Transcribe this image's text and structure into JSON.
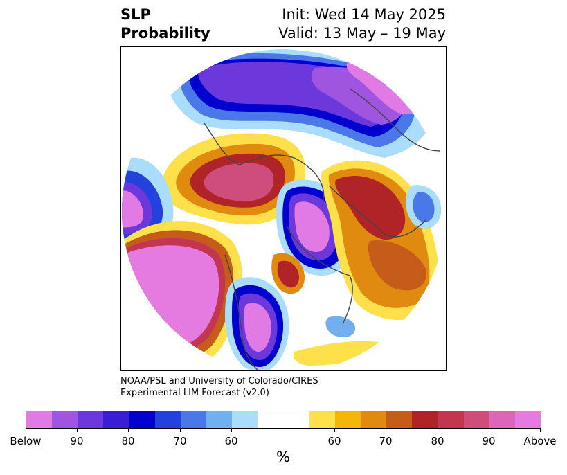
{
  "title": {
    "left": [
      "SLP",
      "Probability"
    ],
    "right": [
      "Init: Wed 14 May 2025",
      "Valid: 13 May – 19 May"
    ]
  },
  "credit": [
    "NOAA/PSL and University of Colorado/CIRES",
    "Experimental LIM Forecast (v2.0)"
  ],
  "colorbar": {
    "unit": "%",
    "below_colors": [
      "#e27ae6",
      "#9f55e0",
      "#6d38db",
      "#3a1ed3",
      "#0000cf",
      "#2342dd",
      "#4a78e8",
      "#72afee",
      "#aadcfb"
    ],
    "neutral_color": "#ffffff",
    "above_colors": [
      "#fee04a",
      "#f5b60a",
      "#e08a10",
      "#c55c1a",
      "#b02428",
      "#c4354f",
      "#cf4d7c",
      "#dc66b8",
      "#e57ae0"
    ],
    "tick_labels": [
      "Below",
      "90",
      "80",
      "70",
      "60",
      "60",
      "70",
      "80",
      "90",
      "Above"
    ]
  }
}
